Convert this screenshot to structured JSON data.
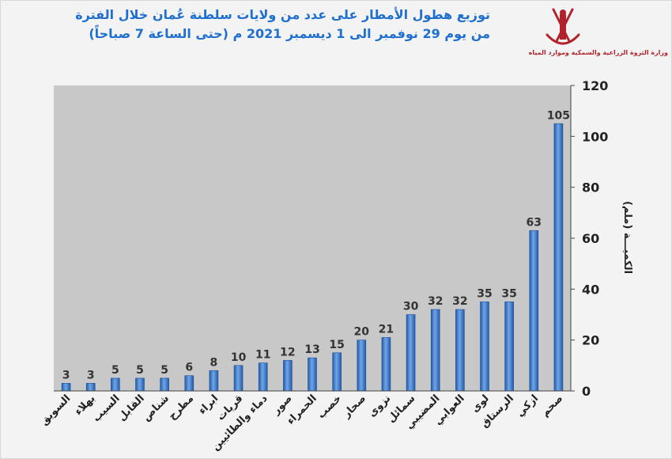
{
  "header": {
    "title_line1": "توزيع هطول الأمطار على عدد من ولايات سلطنة عُمان خلال الفترة",
    "title_line2": "من يوم 29 نوفمبر الى 1 ديسمبر 2021 م (حتى الساعة 7 صباحاً)",
    "ministry": "وزارة الثروة الزراعية والسمكية وموارد المياه"
  },
  "colors": {
    "bar": "#2e6cc4",
    "bar_light": "#6fa6e8",
    "plot_bg": "#c8c8c8",
    "title": "#1f6fd0",
    "logo": "#b0232c"
  },
  "chart_data": {
    "type": "bar",
    "title": "توزيع هطول الأمطار على عدد من ولايات سلطنة عُمان خلال الفترة من يوم 29 نوفمبر الى 1 ديسمبر 2021 م (حتى الساعة 7 صباحاً)",
    "categories": [
      "السويق",
      "بهلاء",
      "السيب",
      "القابل",
      "شناص",
      "مطرح",
      "ابراء",
      "قريات",
      "دماء والطائيين",
      "صور",
      "الحمراء",
      "خصب",
      "صحار",
      "نزوى",
      "سمائل",
      "المضيبي",
      "العوابي",
      "لوى",
      "الرستاق",
      "ازكي",
      "صحم"
    ],
    "values": [
      3,
      3,
      5,
      5,
      5,
      6,
      8,
      10,
      11,
      12,
      13,
      15,
      20,
      21,
      30,
      32,
      32,
      35,
      35,
      63,
      105
    ],
    "ylabel": "الكميـــة (ملم)",
    "xlabel": "",
    "ylim": [
      0,
      120
    ],
    "yticks": [
      0,
      20,
      40,
      60,
      80,
      100,
      120
    ],
    "grid": false,
    "legend": "none",
    "y_axis_position": "right"
  }
}
